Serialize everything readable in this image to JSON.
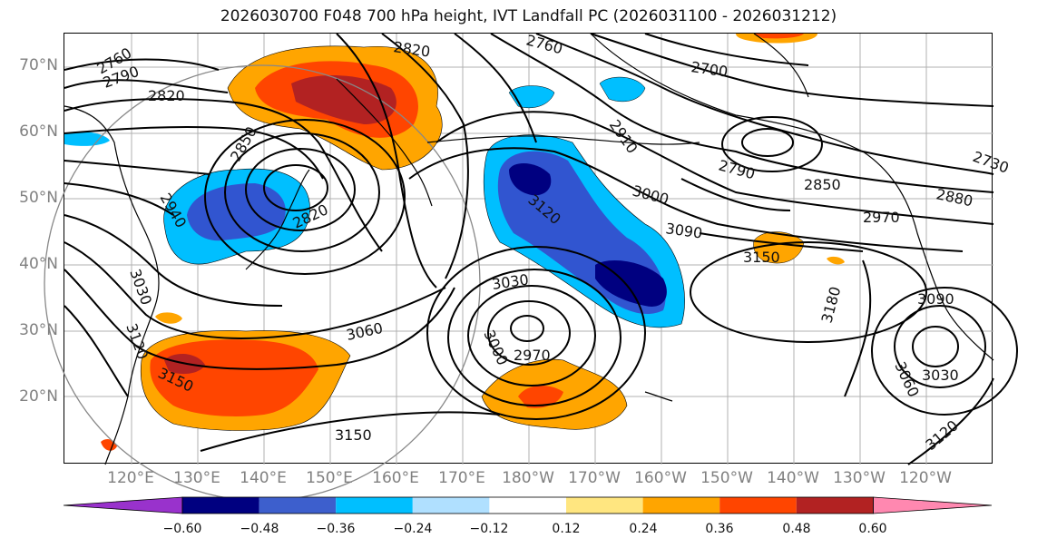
{
  "title": "2026030700 F048 700 hPa height, IVT Landfall PC (2026031100 - 2026031212)",
  "map": {
    "lat_labels": [
      "70°N",
      "60°N",
      "50°N",
      "40°N",
      "30°N",
      "20°N"
    ],
    "lon_labels": [
      "120°E",
      "130°E",
      "140°E",
      "150°E",
      "160°E",
      "170°E",
      "180°W",
      "170°W",
      "160°W",
      "150°W",
      "140°W",
      "130°W",
      "120°W"
    ],
    "contour_labels": [
      "2760",
      "2790",
      "2820",
      "2820",
      "2850",
      "2940",
      "2820",
      "3030",
      "3120",
      "3150",
      "3060",
      "3150",
      "3030",
      "3000",
      "2970",
      "3120",
      "3090",
      "3000",
      "2910",
      "2700",
      "2760",
      "2790",
      "2850",
      "2880",
      "2970",
      "3150",
      "3180",
      "3090",
      "3060",
      "3030",
      "3120",
      "2730"
    ],
    "colors": {
      "shade_neg_060": "#000080",
      "shade_neg_048": "#3155d0",
      "shade_neg_036": "#00bfff",
      "shade_neg_024": "#b0e0ff",
      "shade_pos_024": "#ffe680",
      "shade_pos_036": "#ffa500",
      "shade_pos_048": "#ff4500",
      "shade_pos_060": "#b22222"
    }
  },
  "colorbar": {
    "ticks": [
      "−0.60",
      "−0.48",
      "−0.36",
      "−0.24",
      "−0.12",
      "0.12",
      "0.24",
      "0.36",
      "0.48",
      "0.60"
    ],
    "segments": [
      "#9932cc",
      "#000080",
      "#3d5fcd",
      "#00bfff",
      "#b0e0ff",
      "#ffffff",
      "#ffe680",
      "#ffa500",
      "#ff4500",
      "#b22222",
      "#ff88b0"
    ]
  }
}
